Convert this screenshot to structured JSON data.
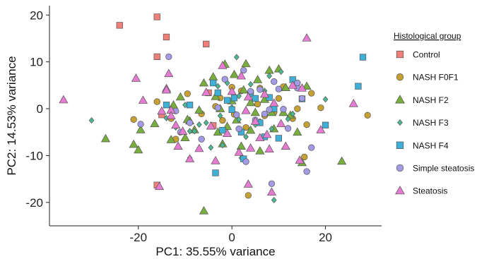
{
  "chart_data": {
    "type": "scatter",
    "xlabel": "PC1: 35.55% variance",
    "ylabel": "PC2: 14.53% variance",
    "xlim": [
      -39,
      32
    ],
    "ylim": [
      -25,
      22
    ],
    "xticks": [
      -20,
      0,
      20
    ],
    "yticks": [
      20,
      10,
      0,
      -10,
      -20
    ],
    "xtick_labels": [
      "-20",
      "0",
      "20"
    ],
    "ytick_labels": [
      "20",
      "10",
      "0",
      "-10",
      "-20"
    ],
    "grid": false,
    "legend_placement": "right",
    "legend_title": "Histological group",
    "series": [
      {
        "name": "Control",
        "shape": "square",
        "color": "#F07F7A",
        "points": [
          [
            -24,
            17.8
          ],
          [
            -16,
            19.6
          ],
          [
            -14,
            15.3
          ],
          [
            -16,
            11.1
          ],
          [
            -5.5,
            13.8
          ],
          [
            -5,
            3.4
          ],
          [
            -15,
            -1.3
          ],
          [
            -4,
            -3.6
          ],
          [
            -16,
            -16.3
          ]
        ]
      },
      {
        "name": "NASH F0F1",
        "shape": "circle",
        "color": "#C7A033",
        "points": [
          [
            -21,
            -2.3
          ],
          [
            -16,
            1.5
          ],
          [
            -13,
            -2.1
          ],
          [
            -9.5,
            3.2
          ],
          [
            -6.5,
            -1.1
          ],
          [
            -4,
            6.2
          ],
          [
            -3.5,
            0.5
          ],
          [
            -2,
            -2.5
          ],
          [
            -2.5,
            2.3
          ],
          [
            0,
            4.6
          ],
          [
            0.5,
            -1.2
          ],
          [
            2,
            3.8
          ],
          [
            3,
            -4
          ],
          [
            5.5,
            1
          ],
          [
            6,
            4.4
          ],
          [
            7,
            -1.5
          ],
          [
            9,
            -0.8
          ],
          [
            10,
            2.2
          ],
          [
            11,
            4.7
          ],
          [
            13,
            -2.1
          ],
          [
            14,
            0
          ],
          [
            16,
            -3.4
          ],
          [
            17,
            3.3
          ],
          [
            19,
            0.2
          ],
          [
            29,
            -1.4
          ],
          [
            3.5,
            -18.5
          ],
          [
            15.5,
            -10.3
          ],
          [
            -12,
            -6.5
          ]
        ]
      },
      {
        "name": "NASH F2",
        "shape": "triangle-up",
        "color": "#78AE3D",
        "points": [
          [
            -27,
            -6.4
          ],
          [
            -21,
            -7.6
          ],
          [
            -20,
            -8.8
          ],
          [
            -16.5,
            -3.2
          ],
          [
            -13,
            -6.6
          ],
          [
            -11,
            2.5
          ],
          [
            -10,
            -6.2
          ],
          [
            -9,
            -2.6
          ],
          [
            -8,
            -4.5
          ],
          [
            -7,
            -0.3
          ],
          [
            -6,
            -21.8
          ],
          [
            -6,
            5.5
          ],
          [
            -4,
            6.8
          ],
          [
            -3.5,
            2.6
          ],
          [
            -3,
            -5
          ],
          [
            -2.5,
            0
          ],
          [
            -2,
            -7.5
          ],
          [
            -1,
            -3.8
          ],
          [
            -1.5,
            9.5
          ],
          [
            0,
            1.7
          ],
          [
            0.5,
            7.3
          ],
          [
            1,
            -2.4
          ],
          [
            2,
            -8
          ],
          [
            2.5,
            4
          ],
          [
            3,
            9.6
          ],
          [
            4,
            1.3
          ],
          [
            4,
            -4.6
          ],
          [
            5,
            -0.8
          ],
          [
            5.5,
            6.2
          ],
          [
            6,
            -9
          ],
          [
            7,
            2
          ],
          [
            8,
            8.2
          ],
          [
            8.5,
            -0.8
          ],
          [
            9,
            -4.3
          ],
          [
            10,
            8.5
          ],
          [
            11,
            -0.8
          ],
          [
            11.5,
            4.5
          ],
          [
            12.5,
            -1.4
          ],
          [
            14,
            -5
          ],
          [
            15,
            -11.5
          ],
          [
            16,
            4.8
          ],
          [
            23.5,
            -11.2
          ],
          [
            -19.5,
            -4.5
          ],
          [
            -12.5,
            0.8
          ],
          [
            -9.5,
            -2.3
          ]
        ]
      },
      {
        "name": "NASH F3",
        "shape": "diamond",
        "color": "#4CB995",
        "points": [
          [
            -30,
            -2.5
          ],
          [
            -14,
            -2
          ],
          [
            -12,
            -4
          ],
          [
            -10,
            0.8
          ],
          [
            -9,
            -4.8
          ],
          [
            -8,
            -4.8
          ],
          [
            -9,
            -10.5
          ],
          [
            -7,
            -3.4
          ],
          [
            -5.5,
            -3
          ],
          [
            -4.5,
            -8.3
          ],
          [
            -3,
            4.8
          ],
          [
            -2.5,
            -1.5
          ],
          [
            -2,
            -7.8
          ],
          [
            -1,
            5.5
          ],
          [
            0,
            0.3
          ],
          [
            1,
            11
          ],
          [
            1.5,
            -2.3
          ],
          [
            2,
            -10.5
          ],
          [
            3,
            -6
          ],
          [
            4,
            5.2
          ],
          [
            5,
            -3.4
          ],
          [
            6,
            -2.7
          ],
          [
            7,
            3.8
          ],
          [
            8,
            7
          ],
          [
            8.5,
            -4.3
          ],
          [
            9,
            -19.5
          ],
          [
            10.5,
            7.9
          ],
          [
            12,
            -2.2
          ],
          [
            13,
            -1.1
          ],
          [
            20,
            2
          ],
          [
            1.5,
            2.7
          ]
        ]
      },
      {
        "name": "NASH F4",
        "shape": "square",
        "color": "#3FB0D7",
        "points": [
          [
            -14,
            0.8
          ],
          [
            -9,
            0.8
          ],
          [
            -4,
            5.5
          ],
          [
            -1,
            1.8
          ],
          [
            -2,
            -4.6
          ],
          [
            -3.5,
            -13.7
          ],
          [
            0,
            -0.2
          ],
          [
            0.5,
            2.3
          ],
          [
            2,
            -5
          ],
          [
            2.5,
            -10.7
          ],
          [
            4,
            3.2
          ],
          [
            5,
            2.2
          ],
          [
            6,
            -3
          ],
          [
            7,
            -6
          ],
          [
            8,
            2.4
          ],
          [
            9,
            0
          ],
          [
            10,
            -6.3
          ],
          [
            13,
            6.2
          ],
          [
            15,
            2.1
          ],
          [
            20,
            -3.5
          ],
          [
            28,
            11
          ],
          [
            27,
            4.8
          ],
          [
            -3,
            3.4
          ]
        ]
      },
      {
        "name": "Simple steatosis",
        "shape": "circle",
        "color": "#A49BE6",
        "points": [
          [
            -19.5,
            -3.3
          ],
          [
            -13.5,
            11.1
          ],
          [
            -12,
            -0.5
          ],
          [
            -11,
            -5
          ],
          [
            -9,
            -3
          ],
          [
            -6.5,
            -6.5
          ],
          [
            -3,
            0.2
          ],
          [
            -1.5,
            6.3
          ],
          [
            1,
            -1.3
          ],
          [
            1.5,
            -4.3
          ],
          [
            2.5,
            8.2
          ],
          [
            3,
            -11.3
          ],
          [
            4,
            3.7
          ],
          [
            5,
            -2.4
          ],
          [
            6,
            4.1
          ],
          [
            7,
            -1.1
          ],
          [
            8,
            -0.2
          ],
          [
            8.5,
            -16
          ],
          [
            9,
            5.8
          ],
          [
            10,
            4.2
          ],
          [
            11,
            -0.1
          ],
          [
            12,
            -4.2
          ],
          [
            14,
            4.4
          ],
          [
            15,
            2.2
          ],
          [
            16,
            -13.4
          ],
          [
            17,
            -8.3
          ],
          [
            14,
            5.5
          ]
        ]
      },
      {
        "name": "Steatosis",
        "shape": "triangle-up",
        "color": "#E67BD2",
        "points": [
          [
            -36,
            1.9
          ],
          [
            -20.5,
            6.5
          ],
          [
            -19,
            1.8
          ],
          [
            -15,
            -0.5
          ],
          [
            -14,
            4.3
          ],
          [
            -13,
            -0.3
          ],
          [
            -13,
            -1.5
          ],
          [
            -12,
            -3.5
          ],
          [
            -11.5,
            -8
          ],
          [
            -10.5,
            -4.8
          ],
          [
            -9,
            -10.7
          ],
          [
            -7,
            -8.5
          ],
          [
            -5.5,
            3.5
          ],
          [
            -4.5,
            -3.7
          ],
          [
            -3.5,
            -11.1
          ],
          [
            -2,
            9.2
          ],
          [
            -1,
            -5.3
          ],
          [
            0,
            3.7
          ],
          [
            1.5,
            -9.3
          ],
          [
            2,
            7
          ],
          [
            3,
            -0.4
          ],
          [
            3.5,
            2.5
          ],
          [
            4,
            -8.4
          ],
          [
            5,
            -2.7
          ],
          [
            6,
            -6.2
          ],
          [
            7,
            3.1
          ],
          [
            7.5,
            -5.5
          ],
          [
            8,
            -8.6
          ],
          [
            8.5,
            -17.8
          ],
          [
            9,
            1.2
          ],
          [
            10.5,
            -3.2
          ],
          [
            11.5,
            -8
          ],
          [
            13,
            5
          ],
          [
            14.5,
            -11
          ],
          [
            15,
            4.4
          ],
          [
            16,
            15.1
          ],
          [
            19,
            -4.5
          ],
          [
            26,
            1.1
          ],
          [
            -15.5,
            -16.6
          ],
          [
            -14,
            4
          ],
          [
            -13.5,
            7.5
          ],
          [
            3.5,
            -16.1
          ]
        ]
      }
    ]
  }
}
